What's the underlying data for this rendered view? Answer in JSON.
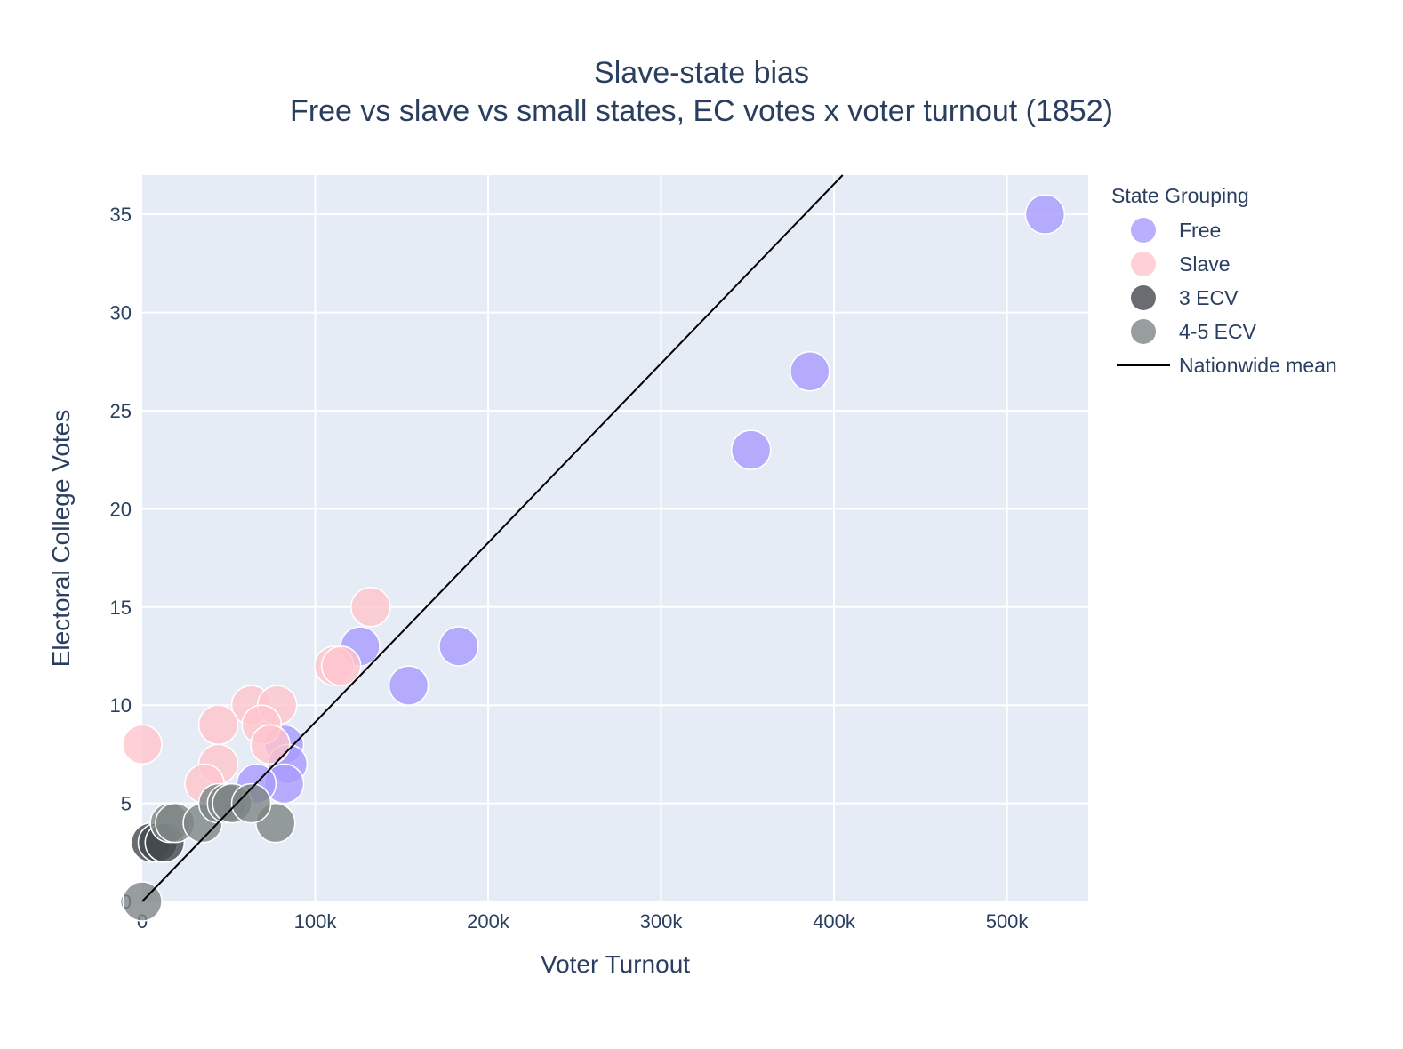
{
  "chart_data": {
    "type": "scatter",
    "title": "Slave-state bias",
    "subtitle": "Free vs slave vs small states, EC votes x voter turnout (1852)",
    "xlabel": "Voter Turnout",
    "ylabel": "Electoral College Votes",
    "xlim": [
      0,
      547000
    ],
    "ylim": [
      0,
      37
    ],
    "x_ticks": [
      0,
      100000,
      200000,
      300000,
      400000,
      500000
    ],
    "x_tick_labels": [
      "0",
      "100k",
      "200k",
      "300k",
      "400k",
      "500k"
    ],
    "y_ticks": [
      0,
      5,
      10,
      15,
      20,
      25,
      30,
      35
    ],
    "y_tick_labels": [
      "0",
      "5",
      "10",
      "15",
      "20",
      "25",
      "30",
      "35"
    ],
    "grid": true,
    "legend_title": "State Grouping",
    "legend_position": "right",
    "series": [
      {
        "name": "Free",
        "color": "#a89bff",
        "points": [
          {
            "x": 522000,
            "y": 35
          },
          {
            "x": 386000,
            "y": 27
          },
          {
            "x": 352000,
            "y": 23
          },
          {
            "x": 183000,
            "y": 13
          },
          {
            "x": 154000,
            "y": 11
          },
          {
            "x": 126000,
            "y": 13
          },
          {
            "x": 82000,
            "y": 8
          },
          {
            "x": 84000,
            "y": 7
          },
          {
            "x": 82000,
            "y": 6
          },
          {
            "x": 66000,
            "y": 6
          }
        ]
      },
      {
        "name": "Slave",
        "color": "#ffc4cc",
        "points": [
          {
            "x": 132000,
            "y": 15
          },
          {
            "x": 111000,
            "y": 12
          },
          {
            "x": 115000,
            "y": 12
          },
          {
            "x": 63000,
            "y": 10
          },
          {
            "x": 78000,
            "y": 10
          },
          {
            "x": 69000,
            "y": 9
          },
          {
            "x": 44000,
            "y": 9
          },
          {
            "x": 74000,
            "y": 8
          },
          {
            "x": 0,
            "y": 8
          },
          {
            "x": 44000,
            "y": 7
          },
          {
            "x": 36000,
            "y": 6
          }
        ]
      },
      {
        "name": "3 ECV",
        "color": "#44494d",
        "points": [
          {
            "x": 5000,
            "y": 3
          },
          {
            "x": 9000,
            "y": 3
          },
          {
            "x": 13000,
            "y": 3
          }
        ]
      },
      {
        "name": "4-5 ECV",
        "color": "#7d8685",
        "points": [
          {
            "x": 0,
            "y": 0
          },
          {
            "x": 16000,
            "y": 4
          },
          {
            "x": 19000,
            "y": 4
          },
          {
            "x": 35000,
            "y": 4
          },
          {
            "x": 77000,
            "y": 4
          },
          {
            "x": 44000,
            "y": 5
          },
          {
            "x": 49000,
            "y": 5
          },
          {
            "x": 52000,
            "y": 5
          },
          {
            "x": 63000,
            "y": 5
          }
        ]
      }
    ],
    "reference_line": {
      "name": "Nationwide mean",
      "color": "#000000",
      "from": {
        "x": 0,
        "y": 0
      },
      "to": {
        "x": 405000,
        "y": 37
      }
    }
  }
}
